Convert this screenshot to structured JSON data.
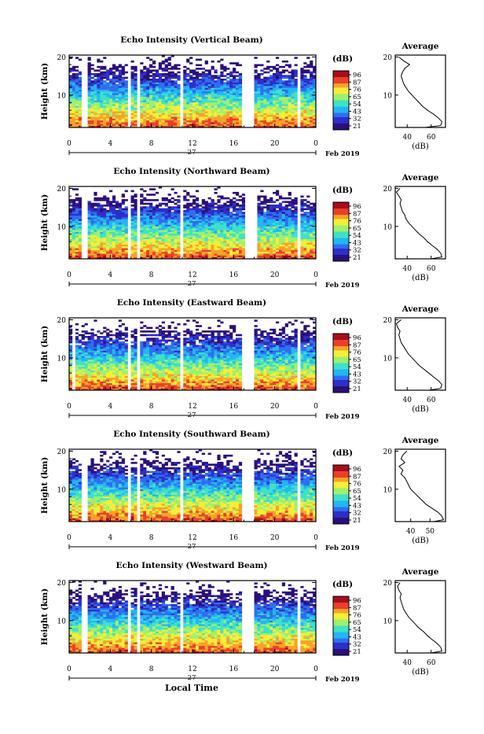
{
  "xlabel": "Local Time",
  "date_label": "Feb 2019",
  "day_label": "27",
  "colorbar_unit": "(dB)",
  "ylabel": "Height (km)",
  "profile_title": "Average",
  "profile_xlabel": "(dB)",
  "colorbar_ticks": [
    "96",
    "87",
    "76",
    "65",
    "54",
    "43",
    "32",
    "21"
  ],
  "colors": {
    "colormap": [
      "#2a0f7a",
      "#2d2fc9",
      "#2f6ef0",
      "#22b6f2",
      "#3fe1c8",
      "#9ef06e",
      "#f4ee3a",
      "#f7a229",
      "#e8402a",
      "#a70e1e"
    ]
  },
  "chart_data": [
    {
      "type": "heatmap",
      "title": "Echo Intensity (Vertical Beam)",
      "x_ticks": [
        "0",
        "4",
        "8",
        "12",
        "16",
        "20",
        "0"
      ],
      "y_ticks": [
        "20",
        "10"
      ],
      "xlim": [
        0,
        24
      ],
      "ylim": [
        1.5,
        20.5
      ],
      "data_gaps_hours": [
        [
          1.1,
          1.9
        ],
        [
          5.7,
          6.1
        ],
        [
          6.7,
          7.0
        ],
        [
          10.7,
          11.0
        ],
        [
          16.9,
          18.1
        ],
        [
          22.3,
          22.5
        ]
      ],
      "colorbar_ticks_db": [
        96,
        87,
        76,
        65,
        54,
        43,
        32,
        21
      ],
      "profile": {
        "title": "Average",
        "xlabel": "(dB)",
        "x_ticks": [
          "40",
          "60"
        ],
        "xlim": [
          30,
          72
        ],
        "y_ticks": [
          "20",
          "10"
        ],
        "height_km": [
          1.5,
          2,
          3,
          4,
          5,
          6,
          7,
          8,
          9,
          10,
          11,
          12,
          13,
          14,
          15,
          16,
          17,
          18,
          19,
          20
        ],
        "mean_db": [
          55,
          68,
          69,
          66,
          62,
          57,
          53,
          50,
          47,
          44,
          41,
          39,
          37,
          36,
          35,
          36,
          38,
          42,
          37,
          33
        ]
      }
    },
    {
      "type": "heatmap",
      "title": "Echo Intensity (Northward Beam)",
      "x_ticks": [
        "0",
        "4",
        "8",
        "12",
        "16",
        "20",
        "0"
      ],
      "y_ticks": [
        "20",
        "10"
      ],
      "xlim": [
        0,
        24
      ],
      "ylim": [
        1.5,
        20.5
      ],
      "data_gaps_hours": [
        [
          1.1,
          1.9
        ],
        [
          5.7,
          6.1
        ],
        [
          6.7,
          7.0
        ],
        [
          10.7,
          11.0
        ],
        [
          17.1,
          18.3
        ],
        [
          22.3,
          22.5
        ]
      ],
      "colorbar_ticks_db": [
        96,
        87,
        76,
        65,
        54,
        43,
        32,
        21
      ],
      "profile": {
        "title": "Average",
        "xlabel": "(dB)",
        "x_ticks": [
          "40",
          "60"
        ],
        "xlim": [
          30,
          72
        ],
        "y_ticks": [
          "20",
          "10"
        ],
        "height_km": [
          1.5,
          2,
          3,
          4,
          5,
          6,
          7,
          8,
          9,
          10,
          11,
          12,
          13,
          14,
          15,
          16,
          17,
          18,
          19,
          20
        ],
        "mean_db": [
          60,
          69,
          68,
          65,
          61,
          57,
          54,
          50,
          47,
          44,
          41,
          39,
          38,
          36,
          35,
          34,
          35,
          33,
          31,
          34
        ]
      }
    },
    {
      "type": "heatmap",
      "title": "Echo Intensity (Eastward Beam)",
      "x_ticks": [
        "0",
        "4",
        "8",
        "12",
        "16",
        "20",
        "0"
      ],
      "y_ticks": [
        "20",
        "10"
      ],
      "xlim": [
        0,
        24
      ],
      "ylim": [
        1.5,
        20.5
      ],
      "data_gaps_hours": [
        [
          0.3,
          0.5
        ],
        [
          5.7,
          6.1
        ],
        [
          6.7,
          7.0
        ],
        [
          10.7,
          11.0
        ],
        [
          16.9,
          17.9
        ],
        [
          22.3,
          22.5
        ]
      ],
      "colorbar_ticks_db": [
        96,
        87,
        76,
        65,
        54,
        43,
        32,
        21
      ],
      "profile": {
        "title": "Average",
        "xlabel": "(dB)",
        "x_ticks": [
          "40",
          "60"
        ],
        "xlim": [
          30,
          72
        ],
        "y_ticks": [
          "20",
          "10"
        ],
        "height_km": [
          1.5,
          2,
          3,
          4,
          5,
          6,
          7,
          8,
          9,
          10,
          11,
          12,
          13,
          14,
          15,
          16,
          17,
          18,
          19,
          20
        ],
        "mean_db": [
          58,
          68,
          69,
          66,
          62,
          58,
          54,
          50,
          47,
          44,
          41,
          39,
          37,
          35,
          34,
          33,
          34,
          32,
          31,
          35
        ]
      }
    },
    {
      "type": "heatmap",
      "title": "Echo Intensity (Southward Beam)",
      "x_ticks": [
        "0",
        "4",
        "8",
        "12",
        "16",
        "20",
        "0"
      ],
      "y_ticks": [
        "20",
        "10"
      ],
      "xlim": [
        0,
        24
      ],
      "ylim": [
        1.5,
        20.5
      ],
      "data_gaps_hours": [
        [
          1.1,
          1.9
        ],
        [
          5.7,
          6.1
        ],
        [
          6.7,
          7.0
        ],
        [
          10.7,
          11.0
        ],
        [
          16.9,
          18.1
        ],
        [
          22.3,
          22.5
        ]
      ],
      "colorbar_ticks_db": [
        96,
        87,
        76,
        65,
        54,
        43,
        32,
        21
      ],
      "profile": {
        "title": "Average",
        "xlabel": "(dB)",
        "x_ticks": [
          "40",
          "50"
        ],
        "xlim": [
          32,
          58
        ],
        "y_ticks": [
          "20",
          "10"
        ],
        "height_km": [
          1.5,
          2,
          3,
          4,
          5,
          6,
          7,
          8,
          9,
          10,
          11,
          12,
          13,
          14,
          15,
          16,
          17,
          18,
          19,
          20
        ],
        "mean_db": [
          52,
          57,
          56,
          54,
          51,
          48,
          46,
          44,
          42,
          40,
          39,
          38,
          37,
          35,
          36,
          34,
          37,
          35,
          36,
          38
        ]
      }
    },
    {
      "type": "heatmap",
      "title": "Echo Intensity (Westward Beam)",
      "x_ticks": [
        "0",
        "4",
        "8",
        "12",
        "16",
        "20",
        "0"
      ],
      "y_ticks": [
        "20",
        "10"
      ],
      "xlim": [
        0,
        24
      ],
      "ylim": [
        1.5,
        20.5
      ],
      "data_gaps_hours": [
        [
          1.1,
          1.9
        ],
        [
          5.7,
          6.1
        ],
        [
          6.7,
          7.0
        ],
        [
          10.7,
          11.0
        ],
        [
          16.9,
          18.1
        ],
        [
          22.3,
          22.5
        ]
      ],
      "colorbar_ticks_db": [
        96,
        87,
        76,
        65,
        54,
        43,
        32,
        21
      ],
      "profile": {
        "title": "Average",
        "xlabel": "(dB)",
        "x_ticks": [
          "40",
          "60"
        ],
        "xlim": [
          30,
          72
        ],
        "y_ticks": [
          "20",
          "10"
        ],
        "height_km": [
          1.5,
          2,
          3,
          4,
          5,
          6,
          7,
          8,
          9,
          10,
          11,
          12,
          13,
          14,
          15,
          16,
          17,
          18,
          19,
          20
        ],
        "mean_db": [
          60,
          69,
          68,
          65,
          61,
          57,
          54,
          50,
          47,
          44,
          41,
          39,
          37,
          36,
          35,
          34,
          35,
          33,
          32,
          34
        ]
      }
    }
  ]
}
